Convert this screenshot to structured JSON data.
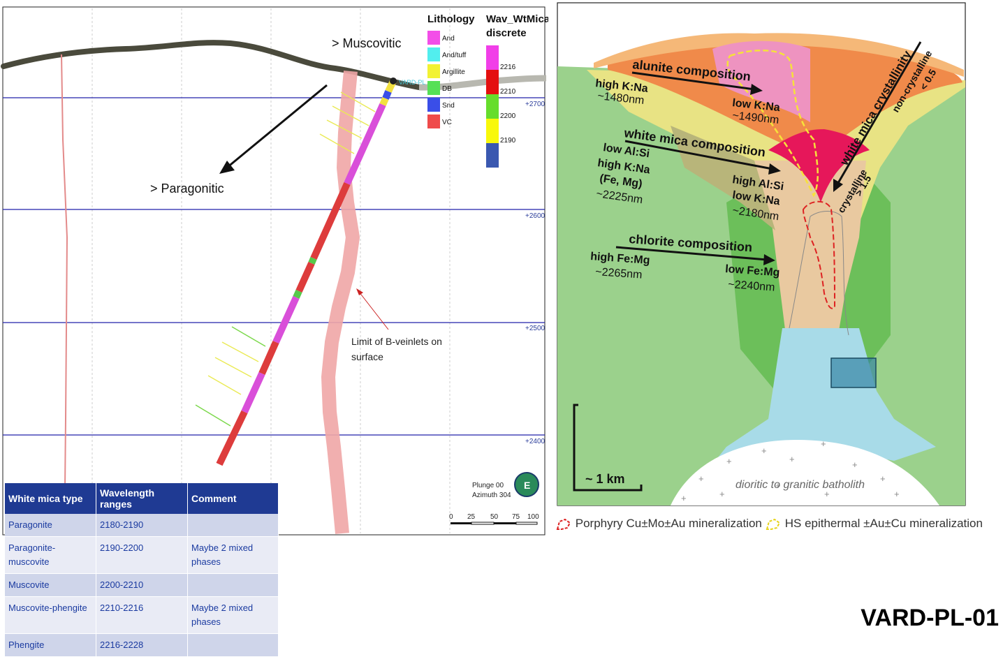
{
  "section": {
    "elevations": [
      "+2700",
      "+2600",
      "+2500",
      "+2400"
    ],
    "muscovitic_label": "> Muscovitic",
    "paragonitic_label": "> Paragonitic",
    "collar_label": "VARD-PL",
    "veinlet_label_line1": "Limit of B-veinlets on",
    "veinlet_label_line2": "surface",
    "plunge": "Plunge 00",
    "azimuth": "Azimuth 304",
    "compass_letter": "E",
    "scale_ticks": [
      "0",
      "25",
      "50",
      "75",
      "100"
    ]
  },
  "lithology": {
    "title": "Lithology",
    "items": [
      {
        "label": "And",
        "color": "#f34ee8"
      },
      {
        "label": "And/tuff",
        "color": "#52eeee"
      },
      {
        "label": "Argillite",
        "color": "#f2f233"
      },
      {
        "label": "DB",
        "color": "#56e056"
      },
      {
        "label": "Snd",
        "color": "#3a4ee8"
      },
      {
        "label": "VC",
        "color": "#ef4a4a"
      }
    ]
  },
  "wavmica": {
    "title_line1": "Wav_WtMica",
    "title_line2": "discrete",
    "ticks": [
      "2216",
      "2210",
      "2200",
      "2190"
    ],
    "colors": [
      "#f13ee8",
      "#e40f0f",
      "#66dd2c",
      "#f8f80a",
      "#3a58b0"
    ]
  },
  "model": {
    "alunite_title": "alunite composition",
    "alunite_left_1": "high K:Na",
    "alunite_left_2": "~1480nm",
    "alunite_right_1": "low K:Na",
    "alunite_right_2": "~1490nm",
    "mica_title": "white mica composition",
    "mica_left_1": "low Al:Si",
    "mica_left_2": "high K:Na",
    "mica_left_3": "(Fe, Mg)",
    "mica_left_4": "~2225nm",
    "mica_right_1": "high Al:Si",
    "mica_right_2": "low K:Na",
    "mica_right_3": "~2180nm",
    "chlorite_title": "chlorite composition",
    "chlorite_left_1": "high Fe:Mg",
    "chlorite_left_2": "~2265nm",
    "chlorite_right_1": "low Fe:Mg",
    "chlorite_right_2": "~2240nm",
    "crystallinity": "white mica crystallinity",
    "noncrystalline": "non-crystalline",
    "noncrystalline_value": "< 0.5",
    "crystalline": "crystalline",
    "crystalline_value": "> 1.5",
    "scale": "~ 1 km",
    "batholith": "dioritic to granitic batholith"
  },
  "legend": {
    "porphyry": "Porphyry Cu±Mo±Au mineralization",
    "hs": "HS epithermal ±Au±Cu mineralization"
  },
  "table": {
    "headers": [
      "White mica type",
      "Wavelength ranges",
      "Comment"
    ],
    "rows": [
      {
        "type": "Paragonite",
        "range": "2180-2190",
        "comment": ""
      },
      {
        "type": "Paragonite-muscovite",
        "range": "2190-2200",
        "comment": "Maybe 2 mixed phases"
      },
      {
        "type": "Muscovite",
        "range": "2200-2210",
        "comment": ""
      },
      {
        "type": "Muscovite-phengite",
        "range": "2210-2216",
        "comment": "Maybe 2 mixed phases"
      },
      {
        "type": "Phengite",
        "range": "2216-2228",
        "comment": ""
      }
    ]
  },
  "drill_id": "VARD-PL-01"
}
